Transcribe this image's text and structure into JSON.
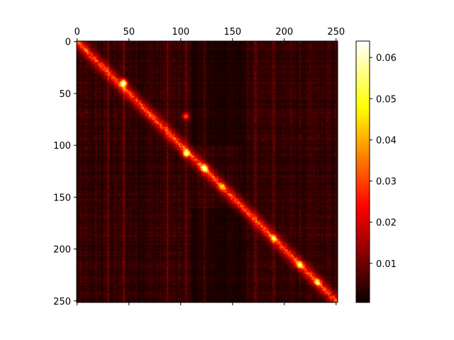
{
  "chart_data": {
    "type": "heatmap",
    "title": "",
    "xlabel": "",
    "ylabel": "",
    "rows": 252,
    "cols": 252,
    "xlim": [
      0,
      251
    ],
    "ylim": [
      251,
      0
    ],
    "x_ticks": [
      "0",
      "50",
      "100",
      "150",
      "200",
      "250"
    ],
    "x_tick_values": [
      0,
      50,
      100,
      150,
      200,
      250
    ],
    "y_ticks": [
      "0",
      "50",
      "100",
      "150",
      "200",
      "250"
    ],
    "y_tick_values": [
      0,
      50,
      100,
      150,
      200,
      250
    ],
    "x_axis_position": "top",
    "colormap": "hot",
    "colorbar": {
      "min": 0.0005,
      "max": 0.064,
      "ticks": [
        "0.01",
        "0.02",
        "0.03",
        "0.04",
        "0.05",
        "0.06"
      ],
      "tick_values": [
        0.01,
        0.02,
        0.03,
        0.04,
        0.05,
        0.06
      ]
    },
    "diagonal_peak_value": 0.062,
    "background_value": 0.004,
    "bright_columns": [
      30,
      45,
      87,
      105,
      123,
      172,
      190
    ],
    "hotspots": [
      {
        "row": 40,
        "col": 45,
        "value": 0.062
      },
      {
        "row": 72,
        "col": 105,
        "value": 0.03
      },
      {
        "row": 108,
        "col": 105,
        "value": 0.045
      },
      {
        "row": 122,
        "col": 123,
        "value": 0.05
      },
      {
        "row": 140,
        "col": 140,
        "value": 0.03
      },
      {
        "row": 190,
        "col": 190,
        "value": 0.03
      },
      {
        "row": 215,
        "col": 215,
        "value": 0.035
      },
      {
        "row": 232,
        "col": 232,
        "value": 0.035
      }
    ],
    "grid": false
  }
}
